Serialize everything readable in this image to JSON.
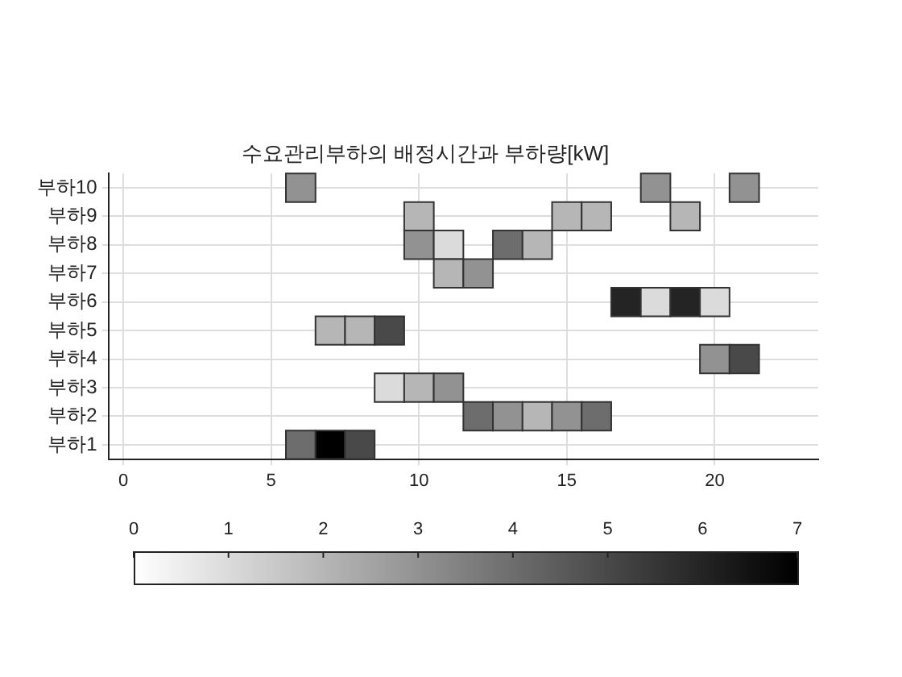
{
  "chart_data": {
    "type": "heatmap",
    "title": "수요관리부하의 배정시간과 부하량[kW]",
    "categories": [
      "0",
      null,
      null,
      null,
      null,
      "5",
      null,
      null,
      null,
      null,
      "10",
      null,
      null,
      null,
      null,
      "15",
      null,
      null,
      null,
      null,
      "20",
      null,
      null,
      null
    ],
    "y_categories": [
      "부하10",
      "부하9",
      "부하8",
      "부하7",
      "부하6",
      "부하5",
      "부하4",
      "부하3",
      "부하2",
      "부하1"
    ],
    "cells": [
      [
        null,
        null,
        null,
        null,
        null,
        null,
        3,
        null,
        null,
        null,
        null,
        null,
        null,
        null,
        null,
        null,
        null,
        null,
        3,
        null,
        null,
        3,
        null,
        null
      ],
      [
        null,
        null,
        null,
        null,
        null,
        null,
        null,
        null,
        null,
        null,
        2,
        null,
        null,
        null,
        null,
        2,
        2,
        null,
        null,
        2,
        null,
        null,
        null,
        null
      ],
      [
        null,
        null,
        null,
        null,
        null,
        null,
        null,
        null,
        null,
        null,
        3,
        1,
        null,
        4,
        2,
        null,
        null,
        null,
        null,
        null,
        null,
        null,
        null,
        null
      ],
      [
        null,
        null,
        null,
        null,
        null,
        null,
        null,
        null,
        null,
        null,
        null,
        2,
        3,
        null,
        null,
        null,
        null,
        null,
        null,
        null,
        null,
        null,
        null,
        null
      ],
      [
        null,
        null,
        null,
        null,
        null,
        null,
        null,
        null,
        null,
        null,
        null,
        null,
        null,
        null,
        null,
        null,
        null,
        6,
        1,
        6,
        1,
        null,
        null,
        null
      ],
      [
        null,
        null,
        null,
        null,
        null,
        null,
        null,
        2,
        2,
        5,
        null,
        null,
        null,
        null,
        null,
        null,
        null,
        null,
        null,
        null,
        null,
        null,
        null,
        null
      ],
      [
        null,
        null,
        null,
        null,
        null,
        null,
        null,
        null,
        null,
        null,
        null,
        null,
        null,
        null,
        null,
        null,
        null,
        null,
        null,
        null,
        3,
        5,
        null,
        null
      ],
      [
        null,
        null,
        null,
        null,
        null,
        null,
        null,
        null,
        null,
        1,
        2,
        3,
        null,
        null,
        null,
        null,
        null,
        null,
        null,
        null,
        null,
        null,
        null,
        null
      ],
      [
        null,
        null,
        null,
        null,
        null,
        null,
        null,
        null,
        null,
        null,
        null,
        null,
        4,
        3,
        2,
        3,
        4,
        null,
        null,
        null,
        null,
        null,
        null,
        null
      ],
      [
        null,
        null,
        null,
        null,
        null,
        null,
        4,
        7,
        5,
        null,
        null,
        null,
        null,
        null,
        null,
        null,
        null,
        null,
        null,
        null,
        null,
        null,
        null,
        null
      ]
    ],
    "clim": [
      0,
      7
    ],
    "cticks": [
      0,
      1,
      2,
      3,
      4,
      5,
      6,
      7
    ],
    "grid": true
  }
}
